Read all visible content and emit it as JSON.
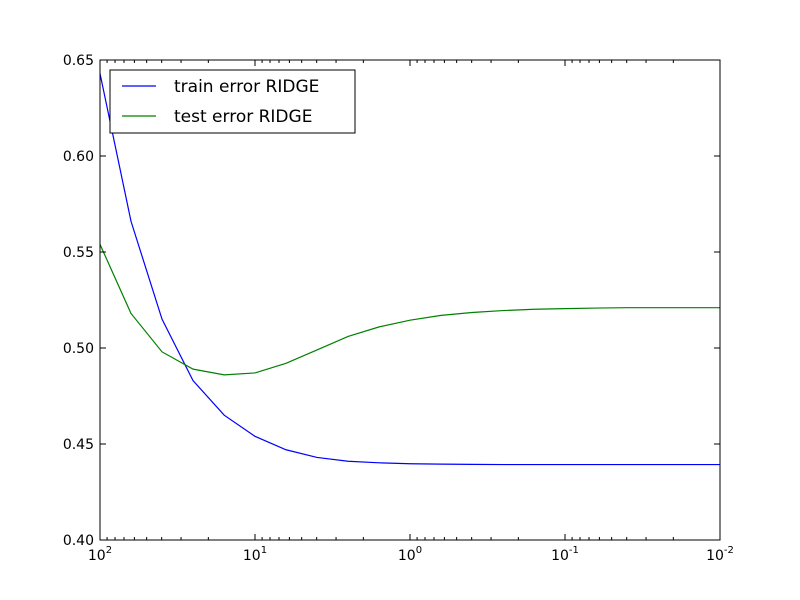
{
  "chart_data": {
    "type": "line",
    "title": "",
    "xlabel": "",
    "ylabel": "",
    "x_scale": "log",
    "x_axis_reversed": true,
    "xlim": [
      100,
      0.01
    ],
    "ylim": [
      0.4,
      0.65
    ],
    "grid": false,
    "legend_position": "upper-left",
    "x_ticks": [
      {
        "value": 100,
        "base": "10",
        "exp": "2"
      },
      {
        "value": 10,
        "base": "10",
        "exp": "1"
      },
      {
        "value": 1,
        "base": "10",
        "exp": "0"
      },
      {
        "value": 0.1,
        "base": "10",
        "exp": "-1"
      },
      {
        "value": 0.01,
        "base": "10",
        "exp": "-2"
      }
    ],
    "y_ticks": [
      "0.40",
      "0.45",
      "0.50",
      "0.55",
      "0.60",
      "0.65"
    ],
    "series": [
      {
        "name": "train error RIDGE",
        "color": "#0000ff",
        "x": [
          100,
          63.1,
          39.8,
          25.1,
          15.8,
          10,
          6.31,
          3.98,
          2.51,
          1.58,
          1,
          0.631,
          0.398,
          0.251,
          0.158,
          0.1,
          0.0631,
          0.0398,
          0.0251,
          0.0158,
          0.01
        ],
        "y": [
          0.643,
          0.566,
          0.515,
          0.483,
          0.465,
          0.454,
          0.447,
          0.443,
          0.441,
          0.4402,
          0.4397,
          0.4395,
          0.4394,
          0.4393,
          0.4393,
          0.4393,
          0.4393,
          0.4393,
          0.4393,
          0.4393,
          0.4393
        ]
      },
      {
        "name": "test error RIDGE",
        "color": "#008000",
        "x": [
          100,
          63.1,
          39.8,
          25.1,
          15.8,
          10,
          6.31,
          3.98,
          2.51,
          1.58,
          1,
          0.631,
          0.398,
          0.251,
          0.158,
          0.1,
          0.0631,
          0.0398,
          0.0251,
          0.0158,
          0.01
        ],
        "y": [
          0.554,
          0.518,
          0.498,
          0.489,
          0.486,
          0.487,
          0.492,
          0.499,
          0.506,
          0.511,
          0.5145,
          0.517,
          0.5185,
          0.5195,
          0.5202,
          0.5205,
          0.5208,
          0.521,
          0.521,
          0.521,
          0.521
        ]
      }
    ]
  }
}
